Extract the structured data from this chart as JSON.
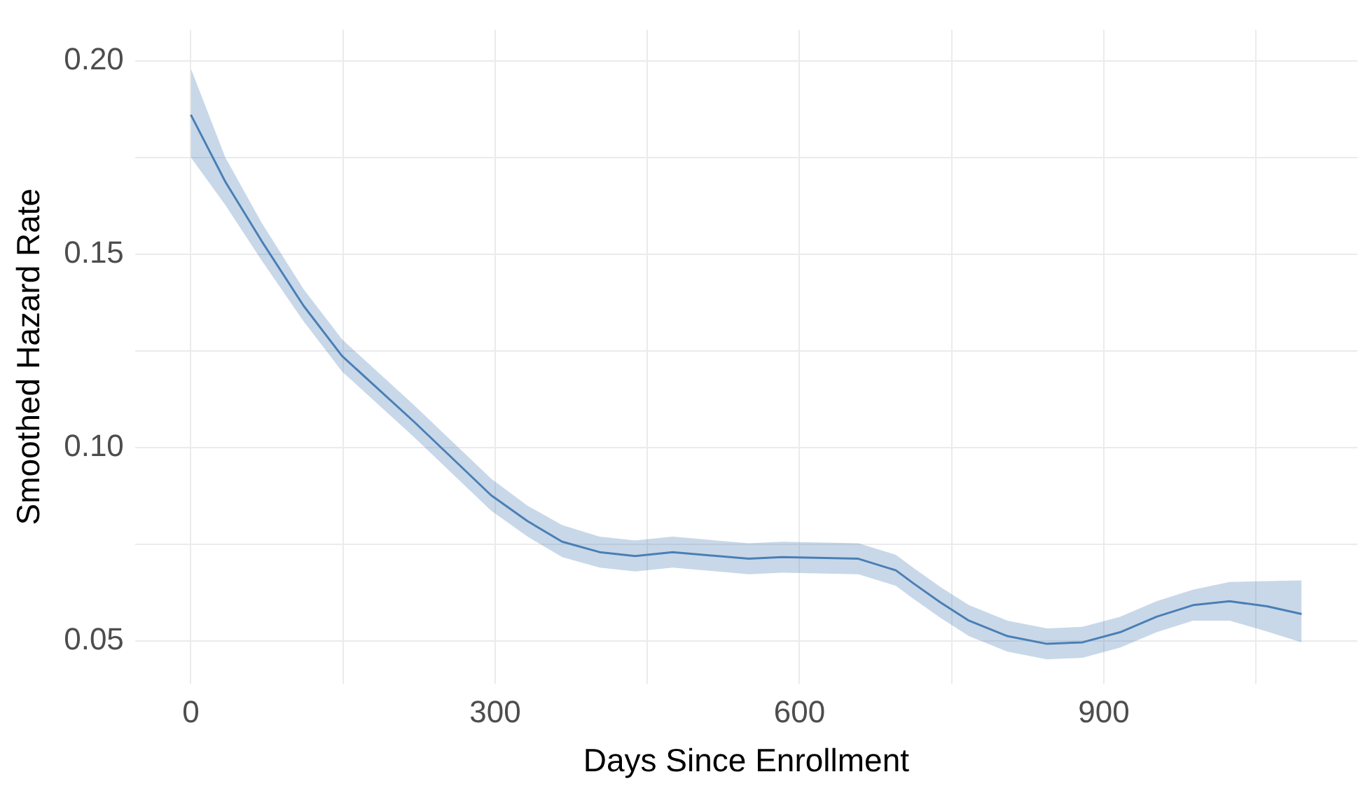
{
  "chart_data": {
    "type": "line",
    "xlabel": "Days Since Enrollment",
    "ylabel": "Smoothed Hazard Rate",
    "xlim": [
      -55,
      1150
    ],
    "ylim": [
      0.039,
      0.208
    ],
    "xticks": [
      0,
      {
        "value": 150,
        "label": null
      },
      300,
      {
        "value": 450,
        "label": null
      },
      600,
      {
        "value": 750,
        "label": null
      },
      900,
      {
        "value": 1050,
        "label": null
      }
    ],
    "yticks": [
      {
        "value": 0.05,
        "label": "0.05"
      },
      {
        "value": 0.075,
        "label": null
      },
      {
        "value": 0.1,
        "label": "0.10"
      },
      {
        "value": 0.125,
        "label": null
      },
      {
        "value": 0.15,
        "label": "0.15"
      },
      {
        "value": 0.175,
        "label": null
      },
      {
        "value": 0.2,
        "label": "0.20"
      }
    ],
    "grid": true,
    "marker": "none",
    "line_style": "solid",
    "series": [
      {
        "color": "#4a7fb5",
        "x": [
          0,
          34,
          70,
          111,
          149,
          220,
          296,
          332,
          366,
          403,
          438,
          475,
          550,
          583,
          658,
          695,
          712,
          739,
          767,
          805,
          844,
          879,
          916,
          952,
          988,
          1024,
          1061,
          1095
        ],
        "values": [
          0.186,
          0.1687,
          0.1533,
          0.1367,
          0.1237,
          0.1067,
          0.0877,
          0.081,
          0.0757,
          0.073,
          0.072,
          0.073,
          0.0713,
          0.0717,
          0.0713,
          0.0683,
          0.065,
          0.06,
          0.0553,
          0.0513,
          0.0493,
          0.0497,
          0.0523,
          0.0563,
          0.0593,
          0.0603,
          0.059,
          0.057
        ],
        "upper": [
          0.198,
          0.175,
          0.158,
          0.141,
          0.128,
          0.111,
          0.092,
          0.085,
          0.08,
          0.077,
          0.076,
          0.077,
          0.0753,
          0.0757,
          0.0753,
          0.0723,
          0.069,
          0.064,
          0.0593,
          0.0553,
          0.0533,
          0.0537,
          0.0563,
          0.0603,
          0.0633,
          0.0653,
          0.0655,
          0.0657
        ],
        "lower": [
          0.175,
          0.1627,
          0.1483,
          0.1327,
          0.1197,
          0.1027,
          0.0837,
          0.077,
          0.0717,
          0.069,
          0.068,
          0.069,
          0.0673,
          0.0677,
          0.0673,
          0.0643,
          0.061,
          0.056,
          0.0513,
          0.0473,
          0.0453,
          0.0457,
          0.0483,
          0.0523,
          0.0553,
          0.0553,
          0.0525,
          0.0497
        ]
      }
    ]
  }
}
